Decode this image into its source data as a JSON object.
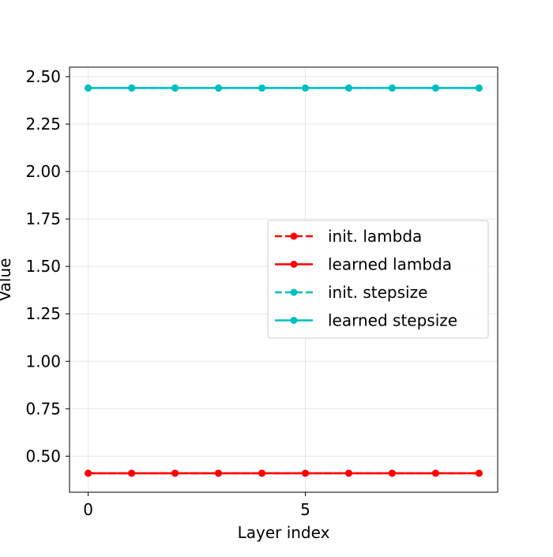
{
  "chart_data": {
    "type": "line",
    "title": "",
    "xlabel": "Layer index",
    "ylabel": "Value",
    "x": [
      0,
      1,
      2,
      3,
      4,
      5,
      6,
      7,
      8,
      9
    ],
    "xlim": [
      -0.43,
      9.43
    ],
    "ylim": [
      0.31,
      2.55
    ],
    "xticks": [
      0,
      5
    ],
    "xtick_labels": [
      "0",
      "5"
    ],
    "yticks": [
      0.5,
      0.75,
      1.0,
      1.25,
      1.5,
      1.75,
      2.0,
      2.25,
      2.5
    ],
    "ytick_labels": [
      "0.50",
      "0.75",
      "1.00",
      "1.25",
      "1.50",
      "1.75",
      "2.00",
      "2.25",
      "2.50"
    ],
    "grid": true,
    "legend_position": "center-right",
    "series": [
      {
        "name": "init. lambda",
        "color": "#ff0000",
        "style": "dashed",
        "marker": "circle",
        "values": [
          0.41,
          0.41,
          0.41,
          0.41,
          0.41,
          0.41,
          0.41,
          0.41,
          0.41,
          0.41
        ]
      },
      {
        "name": "learned lambda",
        "color": "#ff0000",
        "style": "solid",
        "marker": "circle",
        "values": [
          0.41,
          0.41,
          0.41,
          0.41,
          0.41,
          0.41,
          0.41,
          0.41,
          0.41,
          0.41
        ]
      },
      {
        "name": "init. stepsize",
        "color": "#00bfbf",
        "style": "dashed",
        "marker": "circle",
        "values": [
          2.44,
          2.44,
          2.44,
          2.44,
          2.44,
          2.44,
          2.44,
          2.44,
          2.44,
          2.44
        ]
      },
      {
        "name": "learned stepsize",
        "color": "#00bfbf",
        "style": "solid",
        "marker": "circle",
        "values": [
          2.44,
          2.44,
          2.44,
          2.44,
          2.44,
          2.44,
          2.44,
          2.44,
          2.44,
          2.44
        ]
      }
    ]
  }
}
